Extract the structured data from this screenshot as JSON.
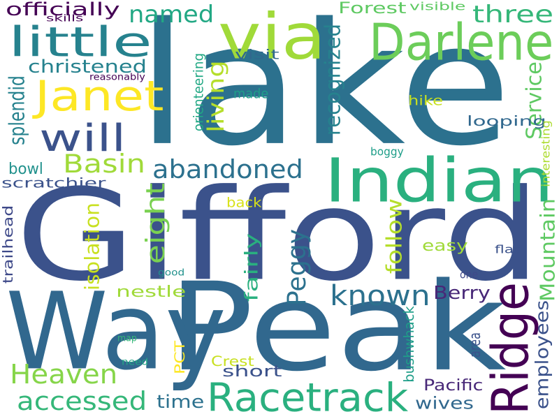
{
  "words": [
    {
      "text": "lake",
      "color": "#2c718e"
    },
    {
      "text": "Gifford",
      "color": "#3b528b"
    },
    {
      "text": "Peak",
      "color": "#31688e"
    },
    {
      "text": "Way",
      "color": "#31688e"
    },
    {
      "text": "Indian",
      "color": "#2ab07f"
    },
    {
      "text": "via",
      "color": "#a0da39"
    },
    {
      "text": "Darlene",
      "color": "#6ccd5a"
    },
    {
      "text": "Racetrack",
      "color": "#2ab07f"
    },
    {
      "text": "Ridge",
      "color": "#440154"
    },
    {
      "text": "little",
      "color": "#26828e"
    },
    {
      "text": "Janet",
      "color": "#fde725"
    },
    {
      "text": "will",
      "color": "#3b528b"
    },
    {
      "text": "officially",
      "color": "#440154"
    },
    {
      "text": "named",
      "color": "#22a884"
    },
    {
      "text": "three",
      "color": "#35b779"
    },
    {
      "text": "Forest",
      "color": "#5ec962"
    },
    {
      "text": "visible",
      "color": "#5ec962"
    },
    {
      "text": "skills",
      "color": "#440154"
    },
    {
      "text": "christened",
      "color": "#26828e"
    },
    {
      "text": "reasonably",
      "color": "#440154"
    },
    {
      "text": "visit",
      "color": "#31688e"
    },
    {
      "text": "orienteering",
      "color": "#22a884"
    },
    {
      "text": "splendid",
      "color": "#26828e"
    },
    {
      "text": "living",
      "color": "#b5de2b"
    },
    {
      "text": "made",
      "color": "#1f9e89"
    },
    {
      "text": "recognized",
      "color": "#26828e"
    },
    {
      "text": "Service",
      "color": "#5ec962"
    },
    {
      "text": "hike",
      "color": "#c8e020"
    },
    {
      "text": "looping",
      "color": "#31688e"
    },
    {
      "text": "Basin",
      "color": "#a0da39"
    },
    {
      "text": "abandoned",
      "color": "#2c718e"
    },
    {
      "text": "bowl",
      "color": "#21918c"
    },
    {
      "text": "scratchier",
      "color": "#3b528b"
    },
    {
      "text": "boggy",
      "color": "#1f9e89"
    },
    {
      "text": "interesting",
      "color": "#addc30"
    },
    {
      "text": "eight",
      "color": "#7ad151"
    },
    {
      "text": "isolation",
      "color": "#c8e020"
    },
    {
      "text": "back",
      "color": "#d8e219"
    },
    {
      "text": "trailhead",
      "color": "#3e4989"
    },
    {
      "text": "fairly",
      "color": "#2ab07f"
    },
    {
      "text": "follow",
      "color": "#b5de2b"
    },
    {
      "text": "Peggy",
      "color": "#2c718e"
    },
    {
      "text": "easy",
      "color": "#a0da39"
    },
    {
      "text": "flat",
      "color": "#3b528b"
    },
    {
      "text": "Mountain",
      "color": "#5ec962"
    },
    {
      "text": "known",
      "color": "#2c718e"
    },
    {
      "text": "one",
      "color": "#3e4989"
    },
    {
      "text": "good",
      "color": "#21918c"
    },
    {
      "text": "nestle",
      "color": "#a0da39"
    },
    {
      "text": "Berry",
      "color": "#482878"
    },
    {
      "text": "Heaven",
      "color": "#86d549"
    },
    {
      "text": "employees",
      "color": "#3b528b"
    },
    {
      "text": "map",
      "color": "#35b779"
    },
    {
      "text": "PCT",
      "color": "#fde725"
    },
    {
      "text": "bushwhack",
      "color": "#1f9e89"
    },
    {
      "text": "area",
      "color": "#3b528b"
    },
    {
      "text": "need",
      "color": "#22a884"
    },
    {
      "text": "Crest",
      "color": "#c8e020"
    },
    {
      "text": "short",
      "color": "#3b528b"
    },
    {
      "text": "Pacific",
      "color": "#482878"
    },
    {
      "text": "accessed",
      "color": "#35b779"
    },
    {
      "text": "time",
      "color": "#2c718e"
    },
    {
      "text": "wives",
      "color": "#31688e"
    }
  ]
}
